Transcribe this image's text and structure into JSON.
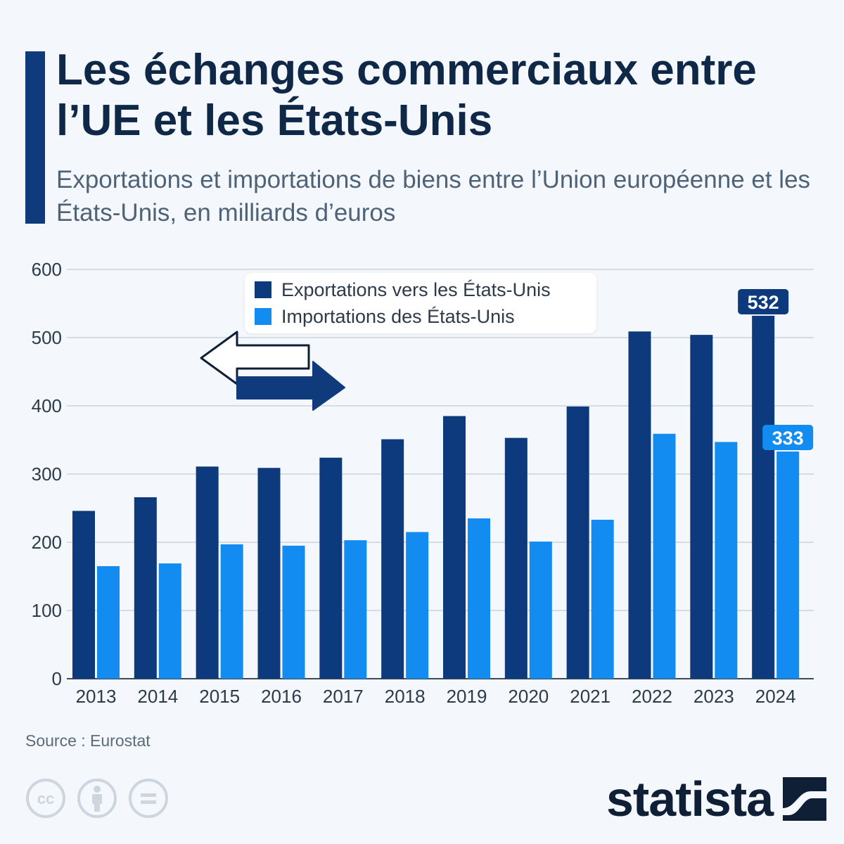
{
  "header": {
    "title": "Les échanges commerciaux entre l’UE et les États-Unis",
    "subtitle": "Exportations et importations de biens entre l’Union européenne et les États-Unis, en milliards d’euros"
  },
  "legend": {
    "exports_label": "Exportations vers les États-Unis",
    "imports_label": "Importations des États-Unis"
  },
  "colors": {
    "exports": "#0c3a7c",
    "imports": "#138cf2",
    "accent": "#0f3b7c"
  },
  "chart_data": {
    "type": "bar",
    "title": "Les échanges commerciaux entre l’UE et les États-Unis",
    "subtitle": "Exportations et importations de biens entre l’Union européenne et les États-Unis, en milliards d’euros",
    "categories": [
      "2013",
      "2014",
      "2015",
      "2016",
      "2017",
      "2018",
      "2019",
      "2020",
      "2021",
      "2022",
      "2023",
      "2024"
    ],
    "series": [
      {
        "name": "Exportations vers les États-Unis",
        "values": [
          246,
          266,
          311,
          309,
          324,
          351,
          385,
          353,
          399,
          509,
          504,
          532
        ]
      },
      {
        "name": "Importations des États-Unis",
        "values": [
          165,
          169,
          197,
          195,
          203,
          215,
          235,
          201,
          233,
          359,
          347,
          333
        ]
      }
    ],
    "ylim": [
      0,
      600
    ],
    "yticks": [
      0,
      100,
      200,
      300,
      400,
      500,
      600
    ],
    "grid": true,
    "legend_position": "top-center",
    "data_labels": [
      {
        "series": 0,
        "category": "2024",
        "text": "532"
      },
      {
        "series": 1,
        "category": "2024",
        "text": "333"
      }
    ]
  },
  "footer": {
    "source": "Source : Eurostat",
    "cc_icons": [
      "creative-commons-icon",
      "attribution-icon",
      "no-derivatives-icon"
    ],
    "logo_text": "statista"
  }
}
